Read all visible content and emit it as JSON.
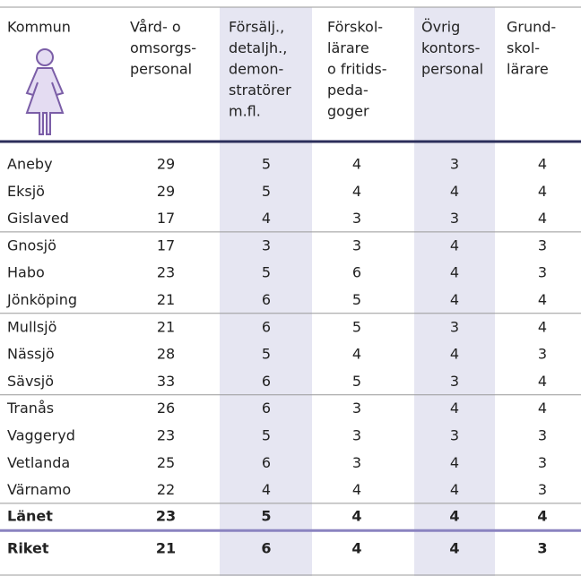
{
  "table": {
    "header": [
      [
        "Kommun"
      ],
      [
        "Vård- o",
        "omsorgs-",
        "personal"
      ],
      [
        "Försälj.,",
        "detaljh.,",
        "demon-",
        "stratörer",
        "m.fl."
      ],
      [
        "Förskol-",
        "lärare",
        "o fritids-",
        "peda-",
        "goger"
      ],
      [
        "Övrig",
        "kontors-",
        "personal"
      ],
      [
        "Grund-",
        "skol-",
        "lärare"
      ]
    ],
    "groups": [
      [
        [
          "Aneby",
          29,
          5,
          4,
          3,
          4
        ],
        [
          "Eksjö",
          29,
          5,
          4,
          4,
          4
        ],
        [
          "Gislaved",
          17,
          4,
          3,
          3,
          4
        ]
      ],
      [
        [
          "Gnosjö",
          17,
          3,
          3,
          4,
          3
        ],
        [
          "Habo",
          23,
          5,
          6,
          4,
          3
        ],
        [
          "Jönköping",
          21,
          6,
          5,
          4,
          4
        ]
      ],
      [
        [
          "Mullsjö",
          21,
          6,
          5,
          3,
          4
        ],
        [
          "Nässjö",
          28,
          5,
          4,
          4,
          3
        ],
        [
          "Sävsjö",
          33,
          6,
          5,
          3,
          4
        ]
      ],
      [
        [
          "Tranås",
          26,
          6,
          3,
          4,
          4
        ],
        [
          "Vaggeryd",
          23,
          5,
          3,
          3,
          3
        ],
        [
          "Vetlanda",
          25,
          6,
          3,
          4,
          3
        ],
        [
          "Värnamo",
          22,
          4,
          4,
          4,
          3
        ]
      ]
    ],
    "totals": [
      [
        "Länet",
        23,
        5,
        4,
        4,
        4
      ],
      [
        "Riket",
        21,
        6,
        4,
        4,
        3
      ]
    ]
  }
}
